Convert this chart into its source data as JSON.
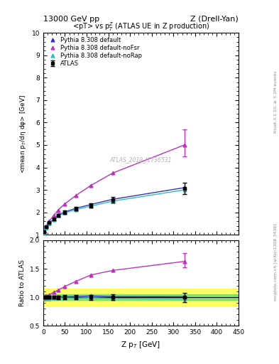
{
  "top_title_left": "13000 GeV pp",
  "top_title_right": "Z (Drell-Yan)",
  "right_label_top": "Rivet 3.1.10, ≥ 3.2M events",
  "right_label_bot": "mcplots.cern.ch [arXiv:1306.3436]",
  "plot_title": "<pT> vs p$_T^Z$ (ATLAS UE in Z production)",
  "ylabel_main": "<mean p$_T$/dη dφ> [GeV]",
  "ylabel_ratio": "Ratio to ATLAS",
  "xlabel": "Z p$_T$ [GeV]",
  "watermark": "ATLAS_2019_I1736531",
  "atlas_x": [
    2,
    7,
    14,
    24,
    34,
    50,
    75,
    110,
    160,
    325
  ],
  "atlas_y": [
    1.12,
    1.35,
    1.55,
    1.7,
    1.87,
    2.0,
    2.15,
    2.3,
    2.55,
    3.07
  ],
  "atlas_yerr": [
    0.02,
    0.03,
    0.04,
    0.05,
    0.06,
    0.07,
    0.08,
    0.1,
    0.13,
    0.25
  ],
  "atlas_color": "#000000",
  "py_default_x": [
    2,
    7,
    14,
    24,
    34,
    50,
    75,
    110,
    160,
    325
  ],
  "py_default_y": [
    1.1,
    1.33,
    1.53,
    1.7,
    1.88,
    2.02,
    2.18,
    2.35,
    2.58,
    3.1
  ],
  "py_default_color": "#3333bb",
  "py_nofsr_x": [
    2,
    7,
    14,
    24,
    34,
    50,
    75,
    110,
    160,
    325
  ],
  "py_nofsr_y": [
    1.13,
    1.38,
    1.62,
    1.85,
    2.1,
    2.38,
    2.75,
    3.2,
    3.75,
    5.0
  ],
  "py_nofsr_color": "#bb33bb",
  "py_norap_x": [
    2,
    7,
    14,
    24,
    34,
    50,
    75,
    110,
    160,
    325
  ],
  "py_norap_y": [
    1.1,
    1.32,
    1.52,
    1.68,
    1.85,
    1.98,
    2.12,
    2.28,
    2.5,
    3.0
  ],
  "py_norap_color": "#33bbbb",
  "ylim_main": [
    1.0,
    10.0
  ],
  "ylim_ratio": [
    0.5,
    2.0
  ],
  "xlim": [
    0,
    450
  ],
  "ratio_band_green": [
    0.95,
    1.05
  ],
  "ratio_band_yellow": [
    0.85,
    1.15
  ],
  "legend_labels": [
    "ATLAS",
    "Pythia 8.308 default",
    "Pythia 8.308 default-noFsr",
    "Pythia 8.308 default-noRap"
  ],
  "nofsr_yerr_main": [
    [
      0.5
    ],
    [
      0.7
    ]
  ],
  "nofsr_yerr_ratio": [
    [
      0.1
    ],
    [
      0.15
    ]
  ],
  "atlas_ratio_yerr_last": [
    [
      0.08
    ],
    [
      0.08
    ]
  ]
}
